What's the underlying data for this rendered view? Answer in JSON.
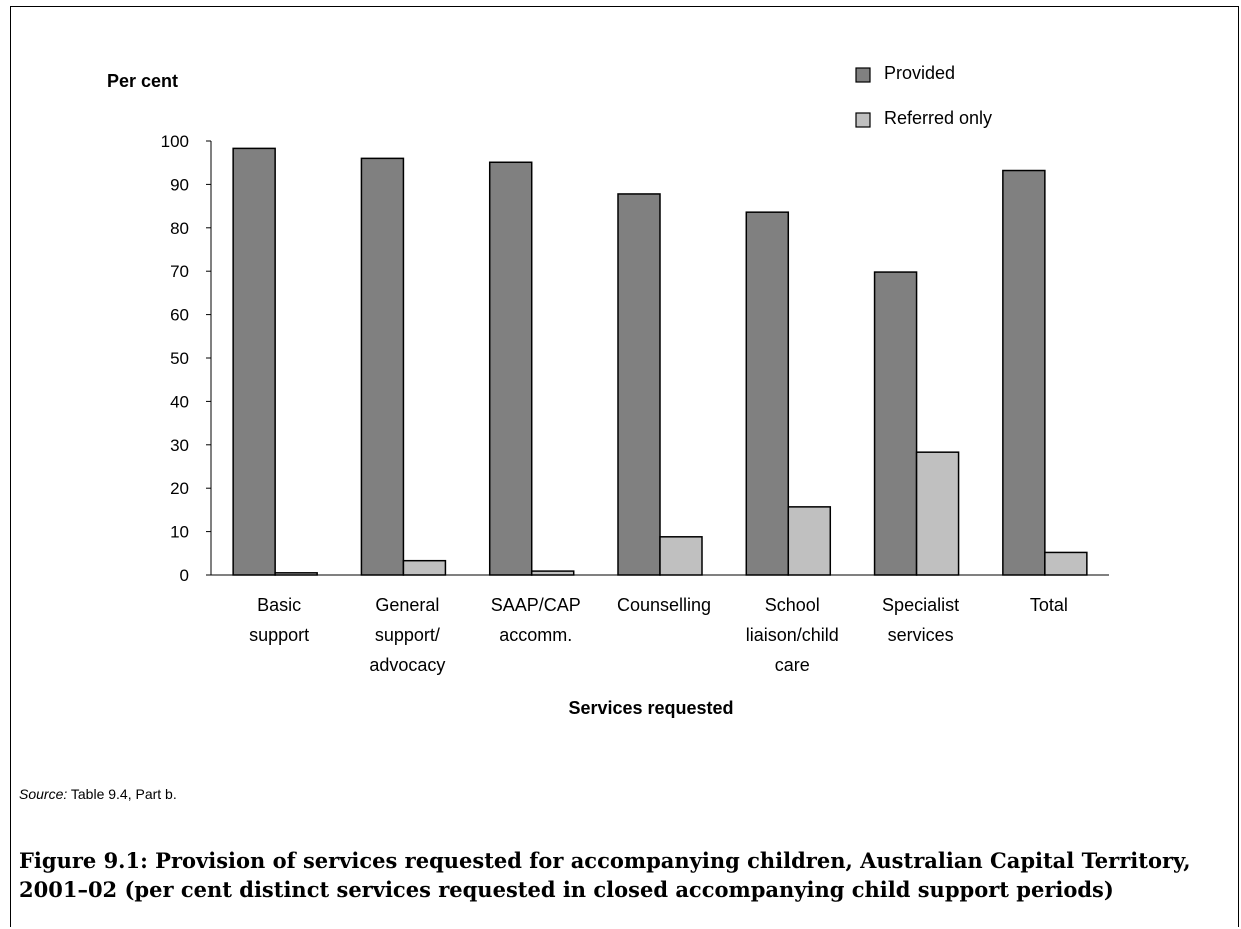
{
  "chart_data": {
    "type": "bar",
    "ylabel": "Per cent",
    "xlabel": "Services requested",
    "ylim": [
      0,
      100
    ],
    "yticks": [
      "0",
      "10",
      "20",
      "30",
      "40",
      "50",
      "60",
      "70",
      "80",
      "90",
      "100"
    ],
    "categories": [
      [
        "Basic",
        "support"
      ],
      [
        "General",
        "support/",
        "advocacy"
      ],
      [
        "SAAP/CAP",
        "accomm."
      ],
      [
        "Counselling"
      ],
      [
        "School",
        "liaison/child",
        "care"
      ],
      [
        "Specialist",
        "services"
      ],
      [
        "Total"
      ]
    ],
    "series": [
      {
        "name": "Provided",
        "color": "#808080",
        "values": [
          98.3,
          96.0,
          95.1,
          87.8,
          83.6,
          69.8,
          93.2
        ]
      },
      {
        "name": "Referred only",
        "color": "#c0c0c0",
        "values": [
          0.5,
          3.3,
          0.9,
          8.8,
          15.7,
          28.3,
          5.2
        ]
      }
    ],
    "legend_position": "top-right",
    "grid": false
  },
  "source": {
    "label": "Source:",
    "text": " Table 9.4, Part b."
  },
  "caption": "Figure 9.1: Provision of services requested for accompanying children, Australian Capital Territory, 2001–02 (per cent distinct services requested in closed accompanying child support periods)"
}
